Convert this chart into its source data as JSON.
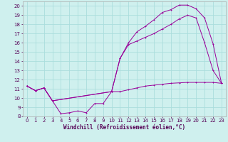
{
  "xlabel": "Windchill (Refroidissement éolien,°C)",
  "ylabel": "",
  "background_color": "#cff0ee",
  "grid_color": "#aadddd",
  "line_color": "#990099",
  "xlim": [
    -0.5,
    23.5
  ],
  "ylim": [
    8,
    20.5
  ],
  "xticks": [
    0,
    1,
    2,
    3,
    4,
    5,
    6,
    7,
    8,
    9,
    10,
    11,
    12,
    13,
    14,
    15,
    16,
    17,
    18,
    19,
    20,
    21,
    22,
    23
  ],
  "yticks": [
    8,
    9,
    10,
    11,
    12,
    13,
    14,
    15,
    16,
    17,
    18,
    19,
    20
  ],
  "line1_x": [
    0,
    1,
    2,
    3,
    4,
    5,
    6,
    7,
    8,
    9,
    10,
    11,
    12,
    13,
    14,
    15,
    16,
    17,
    18,
    19,
    20,
    21,
    22,
    23
  ],
  "line1_y": [
    11.3,
    10.8,
    11.1,
    9.7,
    8.3,
    8.4,
    8.6,
    8.4,
    9.4,
    9.4,
    10.7,
    10.7,
    10.9,
    11.1,
    11.3,
    11.4,
    11.5,
    11.6,
    11.65,
    11.7,
    11.7,
    11.7,
    11.7,
    11.6
  ],
  "line2_x": [
    0,
    1,
    2,
    3,
    10,
    11,
    12,
    13,
    14,
    15,
    16,
    17,
    18,
    19,
    20,
    21,
    22,
    23
  ],
  "line2_y": [
    11.3,
    10.8,
    11.1,
    9.7,
    10.7,
    14.3,
    15.8,
    16.2,
    16.6,
    17.0,
    17.5,
    18.0,
    18.6,
    19.0,
    18.7,
    16.0,
    13.0,
    11.6
  ],
  "line3_x": [
    0,
    1,
    2,
    3,
    10,
    11,
    12,
    13,
    14,
    15,
    16,
    17,
    18,
    19,
    20,
    21,
    22,
    23
  ],
  "line3_y": [
    11.3,
    10.8,
    11.1,
    9.7,
    10.7,
    14.3,
    16.0,
    17.2,
    17.8,
    18.5,
    19.3,
    19.6,
    20.1,
    20.1,
    19.7,
    18.7,
    15.9,
    11.6
  ],
  "tick_fontsize": 5,
  "xlabel_fontsize": 5.5,
  "lw": 0.7,
  "ms": 2.0
}
